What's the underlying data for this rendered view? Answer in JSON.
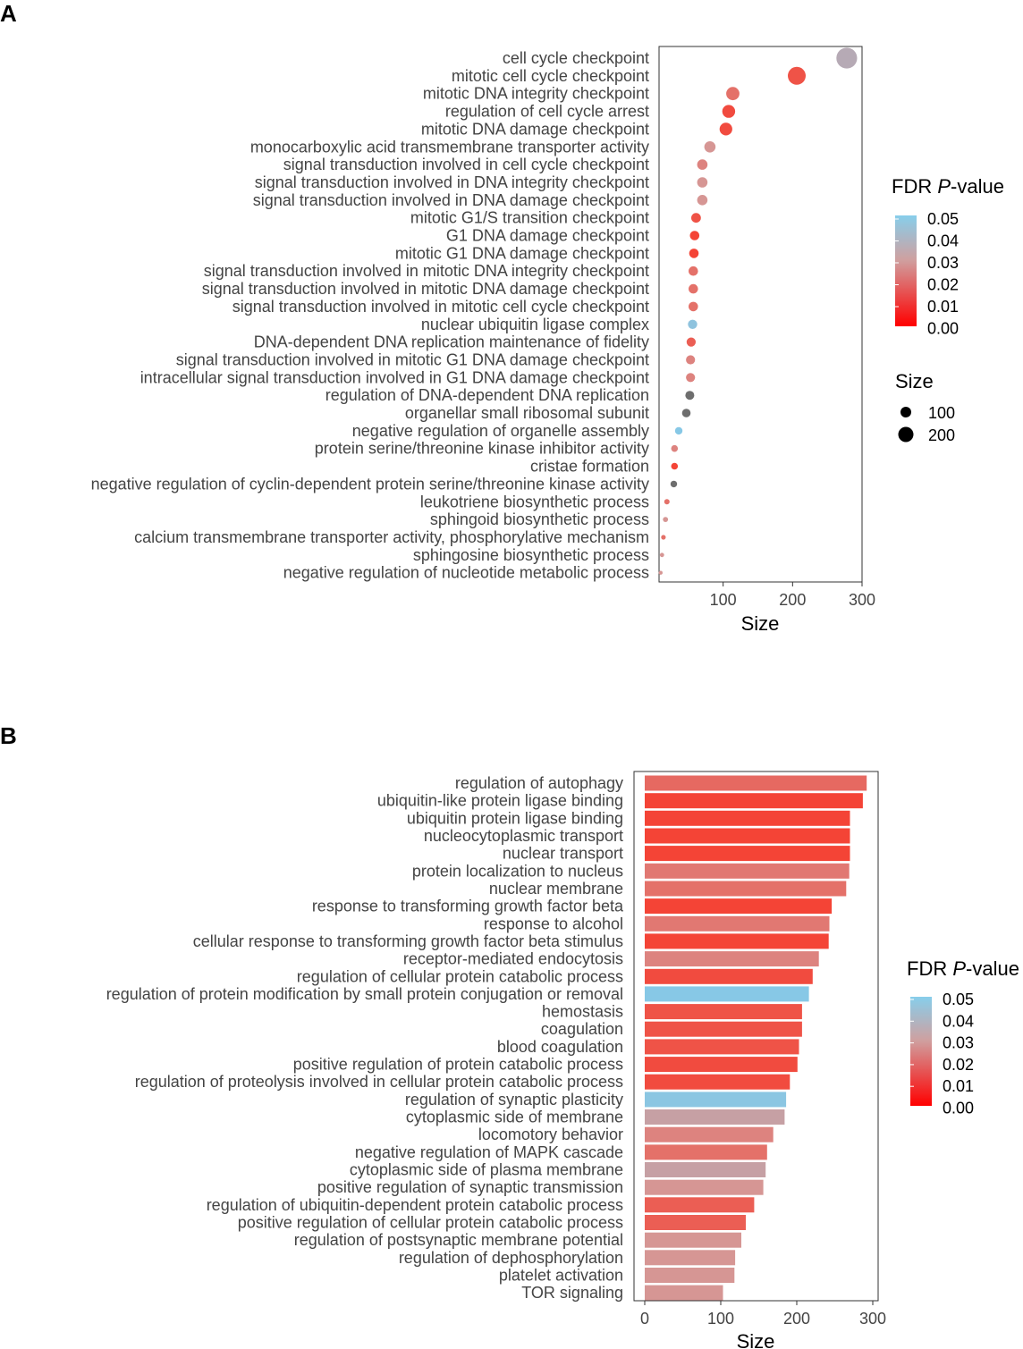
{
  "chart_data": [
    {
      "panel": "A",
      "type": "scatter",
      "xlabel": "Size",
      "xlim": [
        0,
        300
      ],
      "xticks": [
        100,
        200,
        300
      ],
      "color_legend": {
        "title_prefix": "FDR ",
        "title_italic": "P",
        "title_suffix": "-value",
        "ticks": [
          "0.05",
          "0.04",
          "0.03",
          "0.02",
          "0.01",
          "0.00"
        ],
        "range": [
          0,
          0.05
        ]
      },
      "size_legend": {
        "title": "Size",
        "entries": [
          100,
          200
        ]
      },
      "points": [
        {
          "term": "cell cycle checkpoint",
          "size": 278,
          "fdr": 0.038
        },
        {
          "term": "mitotic cell cycle checkpoint",
          "size": 206,
          "fdr": 0.012
        },
        {
          "term": "mitotic DNA integrity checkpoint",
          "size": 114,
          "fdr": 0.02
        },
        {
          "term": "regulation of cell cycle arrest",
          "size": 108,
          "fdr": 0.01
        },
        {
          "term": "mitotic DNA damage checkpoint",
          "size": 104,
          "fdr": 0.01
        },
        {
          "term": "monocarboxylic acid transmembrane transporter activity",
          "size": 81,
          "fdr": 0.03
        },
        {
          "term": "signal transduction involved in cell cycle checkpoint",
          "size": 70,
          "fdr": 0.025
        },
        {
          "term": "signal transduction involved in DNA integrity checkpoint",
          "size": 70,
          "fdr": 0.03
        },
        {
          "term": "signal transduction involved in DNA damage checkpoint",
          "size": 70,
          "fdr": 0.03
        },
        {
          "term": "mitotic G1/S transition checkpoint",
          "size": 61,
          "fdr": 0.012
        },
        {
          "term": "G1 DNA damage checkpoint",
          "size": 59,
          "fdr": 0.008
        },
        {
          "term": "mitotic G1 DNA damage checkpoint",
          "size": 58,
          "fdr": 0.008
        },
        {
          "term": "signal transduction involved in mitotic DNA integrity checkpoint",
          "size": 57,
          "fdr": 0.02
        },
        {
          "term": "signal transduction involved in mitotic DNA damage checkpoint",
          "size": 57,
          "fdr": 0.02
        },
        {
          "term": "signal transduction involved in mitotic cell cycle checkpoint",
          "size": 57,
          "fdr": 0.02
        },
        {
          "term": "nuclear ubiquitin ligase complex",
          "size": 56,
          "fdr": 0.048
        },
        {
          "term": "DNA-dependent DNA replication maintenance of fidelity",
          "size": 54,
          "fdr": 0.015
        },
        {
          "term": "signal transduction involved in mitotic G1 DNA damage checkpoint",
          "size": 53,
          "fdr": 0.025
        },
        {
          "term": "intracellular signal transduction involved in G1 DNA damage checkpoint",
          "size": 53,
          "fdr": 0.025
        },
        {
          "term": "regulation of DNA-dependent DNA replication",
          "size": 52,
          "fdr": null
        },
        {
          "term": "organellar small ribosomal subunit",
          "size": 47,
          "fdr": null
        },
        {
          "term": "negative regulation of organelle assembly",
          "size": 36,
          "fdr": 0.05
        },
        {
          "term": "protein serine/threonine kinase inhibitor activity",
          "size": 30,
          "fdr": 0.025
        },
        {
          "term": "cristae formation",
          "size": 30,
          "fdr": 0.008
        },
        {
          "term": "negative regulation of cyclin-dependent protein serine/threonine kinase activity",
          "size": 29,
          "fdr": null
        },
        {
          "term": "leukotriene biosynthetic process",
          "size": 19,
          "fdr": 0.02
        },
        {
          "term": "sphingoid biosynthetic process",
          "size": 17,
          "fdr": 0.03
        },
        {
          "term": "calcium transmembrane transporter activity, phosphorylative mechanism",
          "size": 14,
          "fdr": 0.02
        },
        {
          "term": "sphingosine biosynthetic process",
          "size": 12,
          "fdr": 0.03
        },
        {
          "term": "negative regulation of nucleotide metabolic process",
          "size": 10,
          "fdr": 0.03
        }
      ]
    },
    {
      "panel": "B",
      "type": "bar",
      "orientation": "horizontal",
      "xlabel": "Size",
      "xlim": [
        0,
        300
      ],
      "xticks": [
        0,
        100,
        200,
        300
      ],
      "color_legend": {
        "title_prefix": "FDR ",
        "title_italic": "P",
        "title_suffix": "-value",
        "ticks": [
          "0.05",
          "0.04",
          "0.03",
          "0.02",
          "0.01",
          "0.00"
        ],
        "range": [
          0,
          0.05
        ]
      },
      "bars": [
        {
          "term": "regulation of autophagy",
          "size": 292,
          "fdr": 0.018
        },
        {
          "term": "ubiquitin-like protein ligase binding",
          "size": 287,
          "fdr": 0.008
        },
        {
          "term": "ubiquitin protein ligase binding",
          "size": 270,
          "fdr": 0.008
        },
        {
          "term": "nucleocytoplasmic transport",
          "size": 270,
          "fdr": 0.008
        },
        {
          "term": "nuclear transport",
          "size": 270,
          "fdr": 0.008
        },
        {
          "term": "protein localization to nucleus",
          "size": 269,
          "fdr": 0.022
        },
        {
          "term": "nuclear membrane",
          "size": 265,
          "fdr": 0.02
        },
        {
          "term": "response to transforming growth factor beta",
          "size": 246,
          "fdr": 0.008
        },
        {
          "term": "response to alcohol",
          "size": 243,
          "fdr": 0.022
        },
        {
          "term": "cellular response to transforming growth factor beta stimulus",
          "size": 242,
          "fdr": 0.008
        },
        {
          "term": "receptor-mediated endocytosis",
          "size": 229,
          "fdr": 0.025
        },
        {
          "term": "regulation of cellular protein catabolic process",
          "size": 221,
          "fdr": 0.01
        },
        {
          "term": "regulation of protein modification by small protein conjugation or removal",
          "size": 216,
          "fdr": 0.05
        },
        {
          "term": "hemostasis",
          "size": 207,
          "fdr": 0.012
        },
        {
          "term": "coagulation",
          "size": 207,
          "fdr": 0.012
        },
        {
          "term": "blood coagulation",
          "size": 203,
          "fdr": 0.012
        },
        {
          "term": "positive regulation of protein catabolic process",
          "size": 201,
          "fdr": 0.01
        },
        {
          "term": "regulation of proteolysis involved in cellular protein catabolic process",
          "size": 191,
          "fdr": 0.01
        },
        {
          "term": "regulation of synaptic plasticity",
          "size": 186,
          "fdr": 0.049
        },
        {
          "term": "cytoplasmic side of membrane",
          "size": 184,
          "fdr": 0.034
        },
        {
          "term": "locomotory behavior",
          "size": 169,
          "fdr": 0.025
        },
        {
          "term": "negative regulation of MAPK cascade",
          "size": 161,
          "fdr": 0.02
        },
        {
          "term": "cytoplasmic side of plasma membrane",
          "size": 159,
          "fdr": 0.034
        },
        {
          "term": "positive regulation of synaptic transmission",
          "size": 156,
          "fdr": 0.03
        },
        {
          "term": "regulation of ubiquitin-dependent protein catabolic process",
          "size": 144,
          "fdr": 0.015
        },
        {
          "term": "positive regulation of cellular protein catabolic process",
          "size": 133,
          "fdr": 0.015
        },
        {
          "term": "regulation of postsynaptic membrane potential",
          "size": 127,
          "fdr": 0.03
        },
        {
          "term": "regulation of dephosphorylation",
          "size": 119,
          "fdr": 0.03
        },
        {
          "term": "platelet activation",
          "size": 118,
          "fdr": 0.03
        },
        {
          "term": "TOR signaling",
          "size": 103,
          "fdr": 0.03
        }
      ]
    }
  ]
}
